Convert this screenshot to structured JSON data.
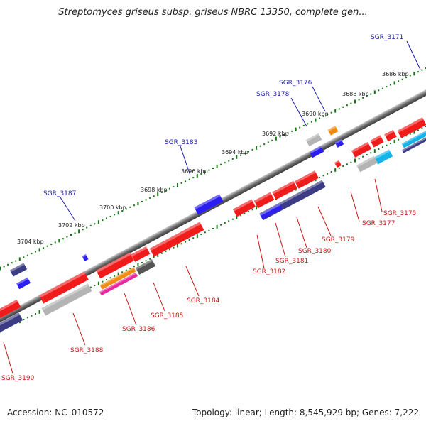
{
  "title": "Streptomyces griseus subsp. griseus NBRC 13350, complete gen...",
  "accession_text": "Accession: NC_010572",
  "topology_text": "Topology: linear; Length: 8,545,929 bp; Genes: 7,222",
  "colors": {
    "forward_gene": "#2a1ef0",
    "reverse_gene": "#f01c1c",
    "navy_gene": "#3c3c84",
    "gray_gene": "#b4b4b4",
    "dark_gene": "#555555",
    "orange_gene": "#f08c14",
    "magenta_gene": "#e8289e",
    "cyan_gene": "#14b4e8",
    "backbone": "#6e6e6e",
    "ticks": "#147814",
    "forward_label": "#1a1aa8",
    "reverse_label": "#c81414"
  },
  "kbp_labels": [
    "3686 kbp",
    "3688 kbp",
    "3690 kbp",
    "3692 kbp",
    "3694 kbp",
    "3696 kbp",
    "3698 kbp",
    "3700 kbp",
    "3702 kbp",
    "3704 kbp"
  ],
  "forward_labels": [
    "SGR_3171",
    "SGR_3176",
    "SGR_3178",
    "SGR_3183",
    "SGR_3187"
  ],
  "reverse_labels": [
    "SGR_3175",
    "SGR_3177",
    "SGR_3179",
    "SGR_3180",
    "SGR_3181",
    "SGR_3182",
    "SGR_3184",
    "SGR_3185",
    "SGR_3186",
    "SGR_3188",
    "SGR_3190"
  ]
}
